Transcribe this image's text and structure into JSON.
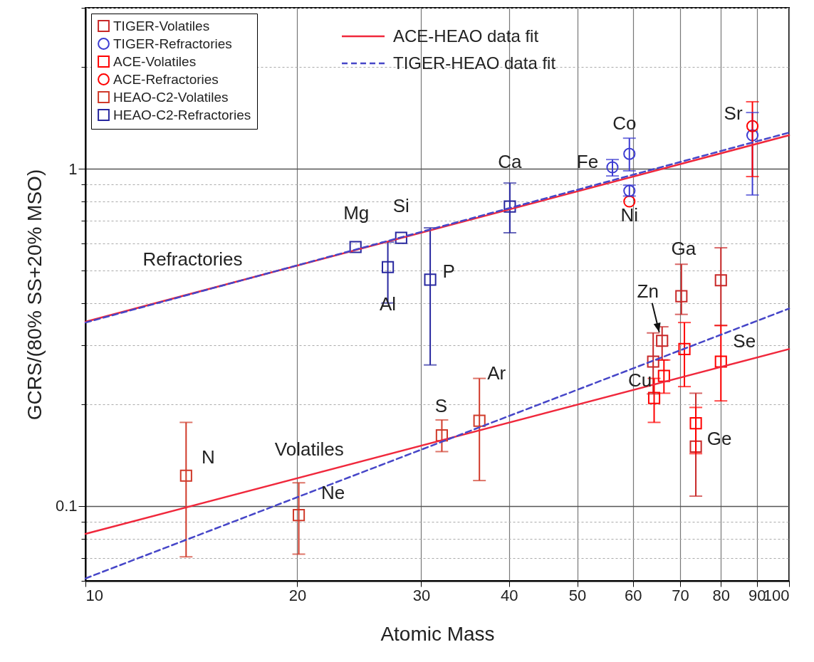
{
  "chart_data": {
    "type": "scatter",
    "xlabel": "Atomic Mass",
    "ylabel": "GCRS/(80% SS+20% MSO)",
    "log": "xy",
    "xlim": [
      10,
      100
    ],
    "ylim": [
      0.06,
      3
    ],
    "xticks": [
      10,
      20,
      30,
      40,
      50,
      60,
      70,
      80,
      90,
      100
    ],
    "yticks": [
      {
        "value": 0.06,
        "label": null
      },
      {
        "value": 0.07,
        "label": null
      },
      {
        "value": 0.08,
        "label": null
      },
      {
        "value": 0.09,
        "label": null
      },
      0.1,
      {
        "value": 0.2,
        "label": null
      },
      {
        "value": 0.3,
        "label": null
      },
      {
        "value": 0.4,
        "label": null
      },
      {
        "value": 0.5,
        "label": null
      },
      {
        "value": 0.6,
        "label": null
      },
      {
        "value": 0.7,
        "label": null
      },
      {
        "value": 0.8,
        "label": null
      },
      {
        "value": 0.9,
        "label": null
      },
      1,
      {
        "value": 2,
        "label": null
      },
      {
        "value": 3,
        "label": null
      }
    ],
    "grid": true,
    "legend": "top left",
    "series": [
      {
        "name": "TIGER-Volatiles",
        "color": "#c82828",
        "marker": "square",
        "x": [
          64.1,
          66.0,
          70.3,
          73.7,
          80.0
        ],
        "values": [
          0.268,
          0.309,
          0.419,
          0.15,
          0.467
        ],
        "errors": [
          [
            0.215,
            0.326
          ],
          [
            0.271,
            0.34
          ],
          [
            0.37,
            0.521
          ],
          [
            0.107,
            0.216
          ],
          [
            0.343,
            0.583
          ]
        ]
      },
      {
        "name": "TIGER-Refractories",
        "color": "#3c3cd2",
        "marker": "circle",
        "x": [
          56.1,
          59.3,
          59.3,
          88.7
        ],
        "values": [
          1.01,
          1.107,
          0.86,
          1.257
        ],
        "errors": [
          [
            0.952,
            1.065
          ],
          [
            0.986,
            1.232
          ],
          [
            0.83,
            0.894
          ],
          [
            0.836,
            1.468
          ]
        ]
      },
      {
        "name": "ACE-Volatiles",
        "color": "#ff0000",
        "marker": "square",
        "x": [
          64.3,
          66.4,
          71.0,
          73.7,
          80.0
        ],
        "values": [
          0.209,
          0.243,
          0.292,
          0.176,
          0.268
        ],
        "errors": [
          [
            0.177,
            0.239
          ],
          [
            0.216,
            0.271
          ],
          [
            0.226,
            0.35
          ],
          [
            0.143,
            0.196
          ],
          [
            0.205,
            0.343
          ]
        ]
      },
      {
        "name": "ACE-Refractories",
        "color": "#ff0000",
        "marker": "circle",
        "x": [
          59.3,
          88.7
        ],
        "values": [
          0.8,
          1.338
        ],
        "errors": [
          null,
          [
            0.948,
            1.58
          ]
        ]
      },
      {
        "name": "HEAO-C2-Volatiles",
        "color": "#d03a2a",
        "marker": "square",
        "x": [
          13.9,
          20.1,
          32.1,
          36.3
        ],
        "values": [
          0.123,
          0.094,
          0.162,
          0.179
        ],
        "errors": [
          [
            0.0707,
            0.177
          ],
          [
            0.072,
            0.1172
          ],
          [
            0.145,
            0.18
          ],
          [
            0.119,
            0.239
          ]
        ]
      },
      {
        "name": "HEAO-C2-Refractories",
        "color": "#2828a0",
        "marker": "square",
        "x": [
          24.2,
          26.9,
          28.1,
          30.9,
          40.1
        ],
        "values": [
          0.586,
          0.511,
          0.624,
          0.469,
          0.773
        ],
        "errors": [
          null,
          [
            0.4,
            0.606
          ],
          null,
          [
            0.262,
            0.668
          ],
          [
            0.646,
            0.907
          ]
        ]
      },
      {
        "type": "line",
        "name": "ACE-HEAO data fit",
        "color": "#f0283c",
        "line_style": "solid",
        "x": [
          10,
          100
        ],
        "values": [
          0.352,
          1.257
        ]
      },
      {
        "type": "line",
        "color": "#f0283c",
        "line_style": "solid",
        "x": [
          10,
          100
        ],
        "values": [
          0.0827,
          0.292
        ]
      },
      {
        "type": "line",
        "name": "TIGER-HEAO data fit",
        "color": "#4646c8",
        "line_style": "dashed",
        "x": [
          10,
          100
        ],
        "values": [
          0.35,
          1.28
        ]
      },
      {
        "type": "line",
        "color": "#4646c8",
        "line_style": "dashed",
        "x": [
          10,
          100
        ],
        "values": [
          0.061,
          0.385
        ]
      }
    ],
    "annotations": [
      {
        "text": "Mg",
        "x": 24.2,
        "y": 0.586
      },
      {
        "text": "Si",
        "x": 28.1,
        "y": 0.624
      },
      {
        "text": "Al",
        "x": 26.9,
        "y": 0.511
      },
      {
        "text": "P",
        "x": 30.9,
        "y": 0.469
      },
      {
        "text": "Ca",
        "x": 40.1,
        "y": 0.773
      },
      {
        "text": "Fe",
        "x": 56.1,
        "y": 1.01
      },
      {
        "text": "Co",
        "x": 59.3,
        "y": 1.107
      },
      {
        "text": "Ni",
        "x": 59.3,
        "y": 0.8
      },
      {
        "text": "Sr",
        "x": 88.7,
        "y": 1.338
      },
      {
        "text": "Ga",
        "x": 70.3,
        "y": 0.419
      },
      {
        "text": "Zn",
        "x": 66.0,
        "y": 0.309
      },
      {
        "text": "Se",
        "x": 80.0,
        "y": 0.268
      },
      {
        "text": "Cu",
        "x": 64.3,
        "y": 0.209
      },
      {
        "text": "Ge",
        "x": 73.7,
        "y": 0.15
      },
      {
        "text": "N",
        "x": 13.9,
        "y": 0.123
      },
      {
        "text": "Ne",
        "x": 20.1,
        "y": 0.094
      },
      {
        "text": "S",
        "x": 32.1,
        "y": 0.162
      },
      {
        "text": "Ar",
        "x": 36.3,
        "y": 0.179
      },
      {
        "text": "Refractories",
        "x": 14.2,
        "y": 0.427
      },
      {
        "text": "Volatiles",
        "x": 20.8,
        "y": 0.1236
      }
    ]
  }
}
